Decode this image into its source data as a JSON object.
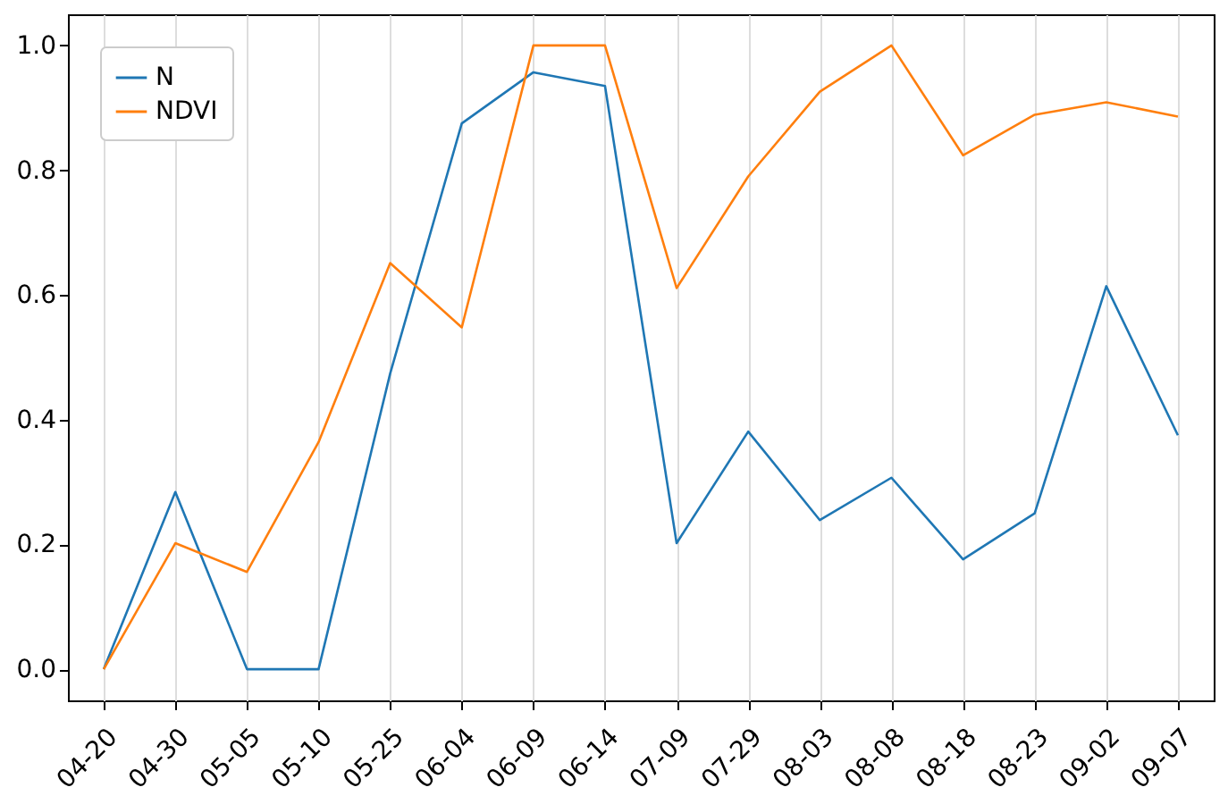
{
  "chart_data": {
    "type": "line",
    "categories": [
      "04-20",
      "04-30",
      "05-05",
      "05-10",
      "05-25",
      "06-04",
      "06-09",
      "06-14",
      "07-09",
      "07-29",
      "08-03",
      "08-08",
      "08-18",
      "08-23",
      "09-02",
      "09-07"
    ],
    "series": [
      {
        "name": "N",
        "color": "#1f77b4",
        "values": [
          0,
          0.284,
          0,
          0,
          0.474,
          0.875,
          0.957,
          0.935,
          0.202,
          0.381,
          0.239,
          0.307,
          0.176,
          0.25,
          0.614,
          0.375
        ]
      },
      {
        "name": "NDVI",
        "color": "#ff7f0e",
        "values": [
          0,
          0.202,
          0.156,
          0.364,
          0.651,
          0.548,
          1.0,
          1.0,
          0.611,
          0.79,
          0.926,
          1.0,
          0.824,
          0.889,
          0.909,
          0.886
        ]
      }
    ],
    "ylim": [
      -0.05,
      1.05
    ],
    "yticks": [
      {
        "value": 0,
        "label": "0.0"
      },
      {
        "value": 0.2,
        "label": "0.2"
      },
      {
        "value": 0.4,
        "label": "0.4"
      },
      {
        "value": 0.6,
        "label": "0.6"
      },
      {
        "value": 0.8,
        "label": "0.8"
      },
      {
        "value": 1,
        "label": "1.0"
      }
    ],
    "grid": "x",
    "legend": "top left"
  }
}
